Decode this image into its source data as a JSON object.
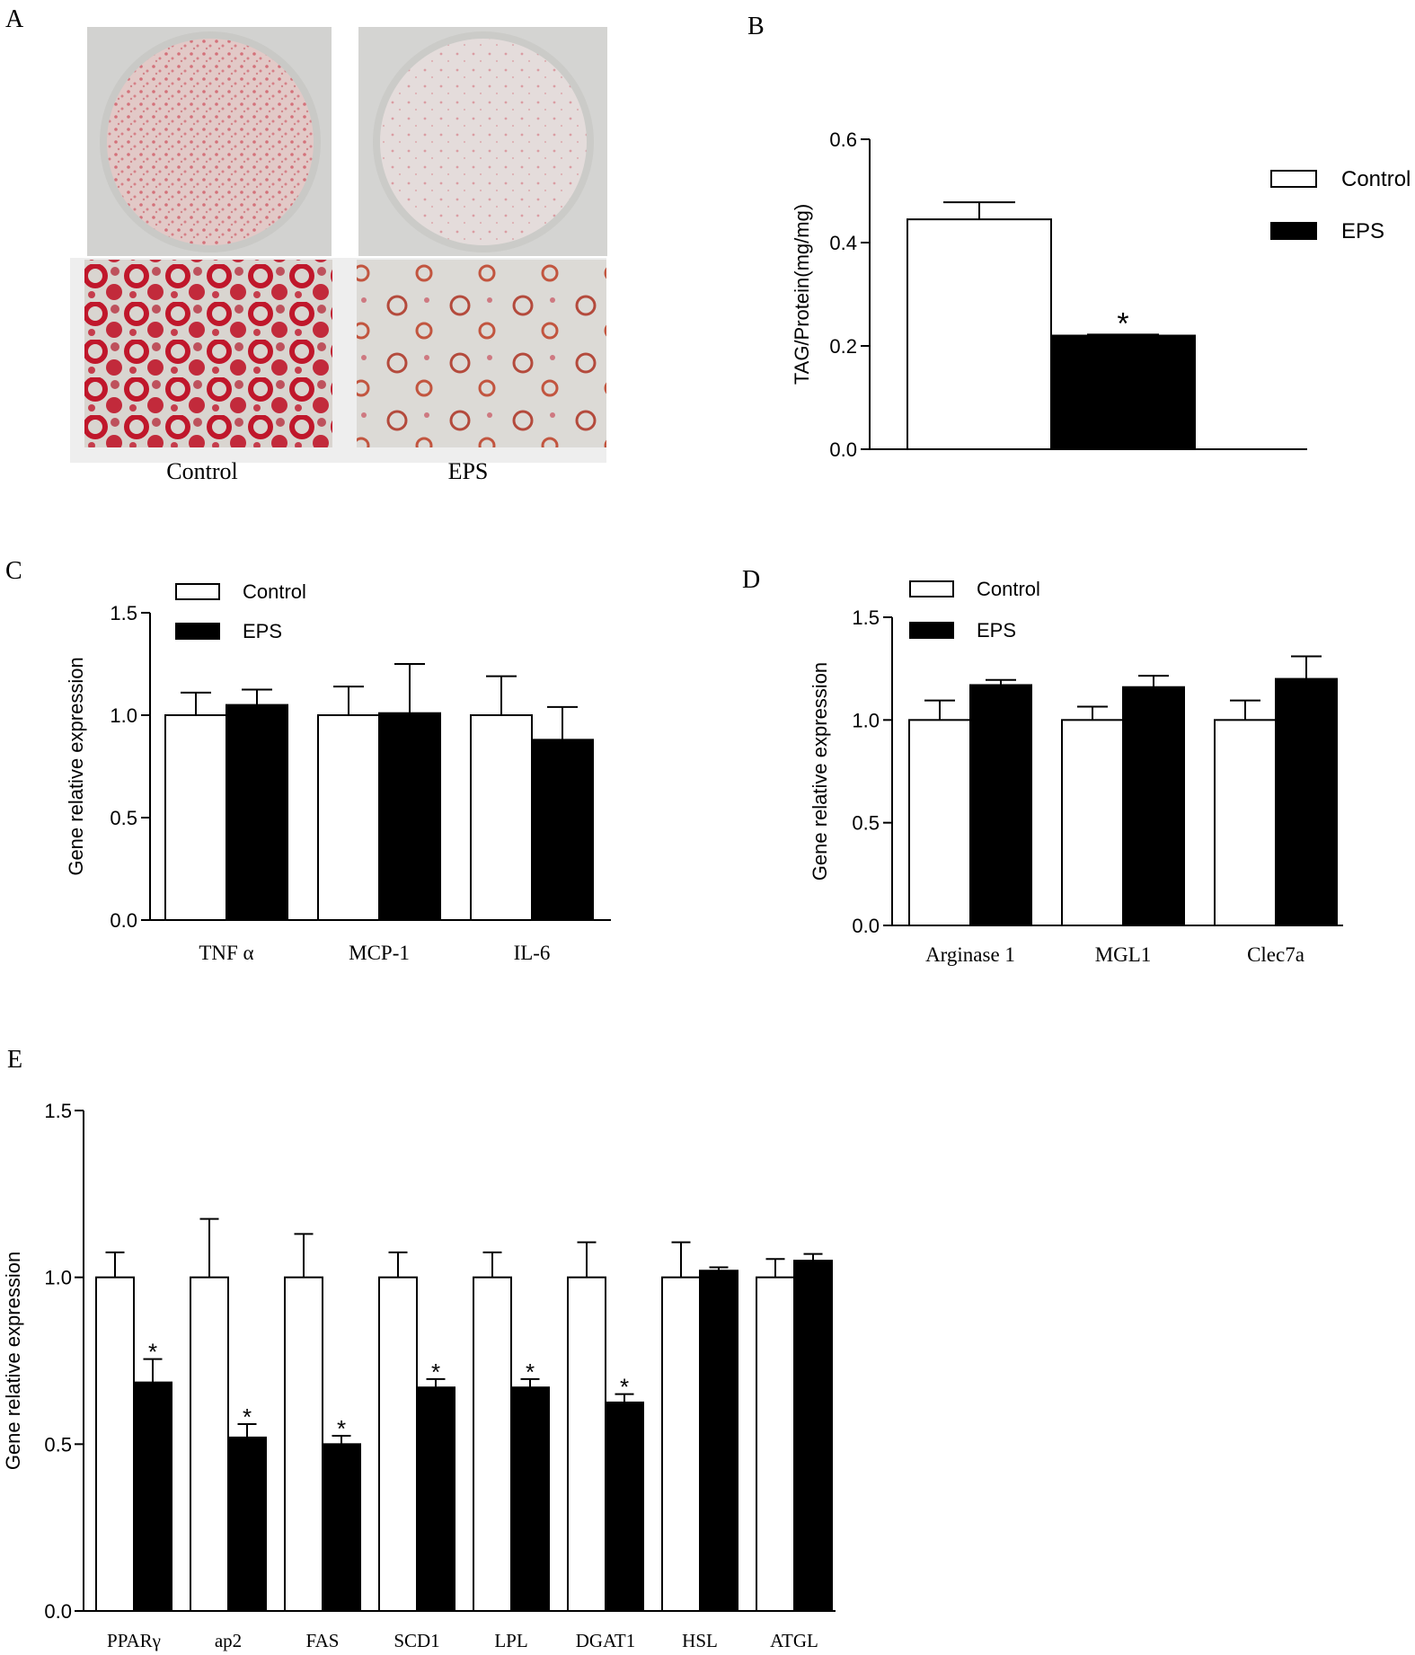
{
  "panel_letters": {
    "a": "A",
    "b": "B",
    "c": "C",
    "d": "D",
    "e": "E"
  },
  "panel_a": {
    "labels": [
      "Control",
      "EPS"
    ],
    "colors": {
      "stain": "#c8283a",
      "plate": "#d9d9d9",
      "well_bg": "#e6d2d0",
      "micro_bg": "#d8d6d2"
    }
  },
  "significance_marker": "*",
  "colors": {
    "control_fill": "#ffffff",
    "eps_fill": "#000000",
    "stroke": "#000000"
  },
  "chart_data": [
    {
      "id": "B",
      "type": "bar",
      "title": "",
      "xlabel": "",
      "ylabel": "TAG/Protein(mg/mg)",
      "ylim": [
        0,
        0.6
      ],
      "yticks": [
        "0.0",
        "0.2",
        "0.4",
        "0.6"
      ],
      "categories": [
        ""
      ],
      "series": [
        {
          "name": "Control",
          "values": [
            0.445
          ],
          "errors": [
            0.033
          ]
        },
        {
          "name": "EPS",
          "values": [
            0.22
          ],
          "errors": [
            0.002
          ],
          "significant": [
            true
          ]
        }
      ],
      "legend": "right"
    },
    {
      "id": "C",
      "type": "bar",
      "title": "",
      "xlabel": "",
      "ylabel": "Gene relative expression",
      "ylim": [
        0,
        1.5
      ],
      "yticks": [
        "0.0",
        "0.5",
        "1.0",
        "1.5"
      ],
      "categories": [
        "TNF α",
        "MCP-1",
        "IL-6"
      ],
      "series": [
        {
          "name": "Control",
          "values": [
            1.0,
            1.0,
            1.0
          ],
          "errors": [
            0.11,
            0.14,
            0.19
          ]
        },
        {
          "name": "EPS",
          "values": [
            1.05,
            1.01,
            0.88
          ],
          "errors": [
            0.075,
            0.24,
            0.16
          ]
        }
      ],
      "legend": "top-left"
    },
    {
      "id": "D",
      "type": "bar",
      "title": "",
      "xlabel": "",
      "ylabel": "Gene relative expression",
      "ylim": [
        0,
        1.5
      ],
      "yticks": [
        "0.0",
        "0.5",
        "1.0",
        "1.5"
      ],
      "categories": [
        "Arginase 1",
        "MGL1",
        "Clec7a"
      ],
      "series": [
        {
          "name": "Control",
          "values": [
            1.0,
            1.0,
            1.0
          ],
          "errors": [
            0.095,
            0.065,
            0.095
          ]
        },
        {
          "name": "EPS",
          "values": [
            1.17,
            1.16,
            1.2
          ],
          "errors": [
            0.025,
            0.055,
            0.11
          ]
        }
      ],
      "legend": "top-left"
    },
    {
      "id": "E",
      "type": "bar",
      "title": "",
      "xlabel": "",
      "ylabel": "Gene relative expression",
      "ylim": [
        0,
        1.5
      ],
      "yticks": [
        "0.0",
        "0.5",
        "1.0",
        "1.5"
      ],
      "categories": [
        "PPARγ",
        "ap2",
        "FAS",
        "SCD1",
        "LPL",
        "DGAT1",
        "HSL",
        "ATGL"
      ],
      "series": [
        {
          "name": "Control",
          "values": [
            1.0,
            1.0,
            1.0,
            1.0,
            1.0,
            1.0,
            1.0,
            1.0
          ],
          "errors": [
            0.075,
            0.175,
            0.13,
            0.075,
            0.075,
            0.105,
            0.105,
            0.055
          ]
        },
        {
          "name": "EPS",
          "values": [
            0.685,
            0.52,
            0.5,
            0.67,
            0.67,
            0.625,
            1.02,
            1.05
          ],
          "errors": [
            0.07,
            0.04,
            0.025,
            0.025,
            0.025,
            0.025,
            0.01,
            0.02
          ],
          "significant": [
            true,
            true,
            true,
            true,
            true,
            true,
            false,
            false
          ]
        }
      ],
      "legend": "none"
    }
  ]
}
